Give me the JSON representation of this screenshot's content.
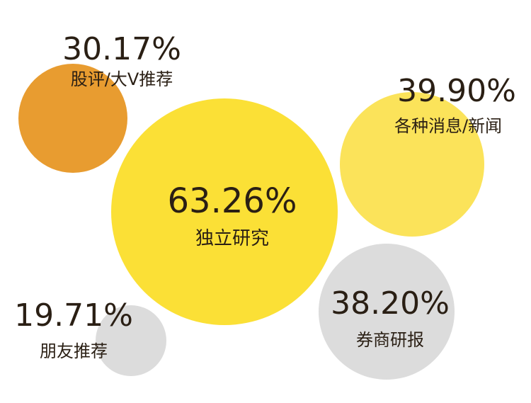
{
  "chart_data": {
    "type": "bubble",
    "series": [
      {
        "label": "股评/大V推荐",
        "value": 30.17,
        "value_text": "30.17%",
        "color": "#e89c30"
      },
      {
        "label": "独立研究",
        "value": 63.26,
        "value_text": "63.26%",
        "color": "#fbe036"
      },
      {
        "label": "各种消息/新闻",
        "value": 39.9,
        "value_text": "39.90%",
        "color": "#fbe35a"
      },
      {
        "label": "券商研报",
        "value": 38.2,
        "value_text": "38.20%",
        "color": "#dcdcdc"
      },
      {
        "label": "朋友推荐",
        "value": 19.71,
        "value_text": "19.71%",
        "color": "#dcdcdc"
      }
    ]
  }
}
